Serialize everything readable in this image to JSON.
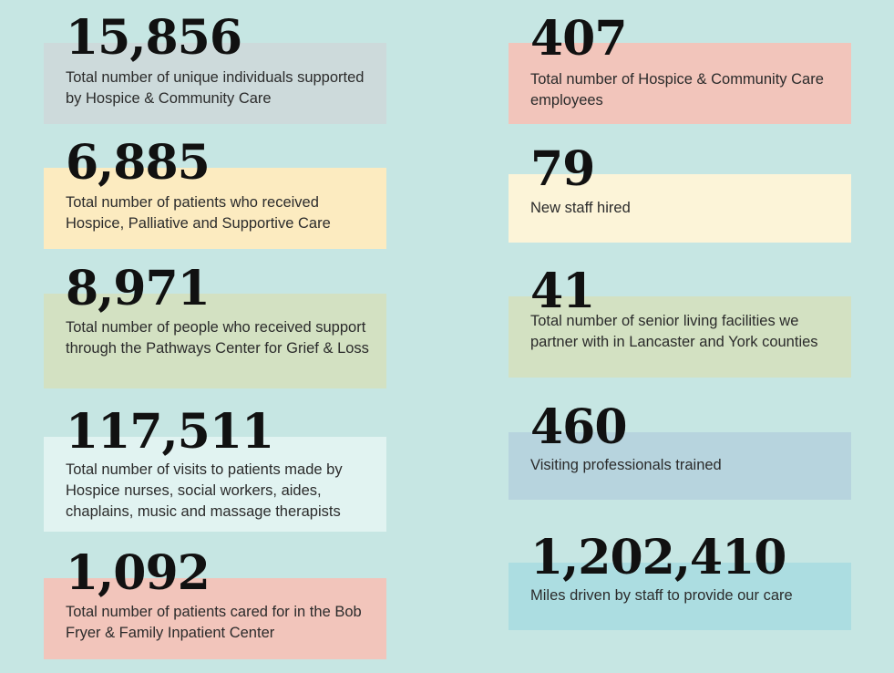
{
  "colors": {
    "background": "#c6e6e3",
    "gray": "#cddadb",
    "yellow": "#fcebc0",
    "green": "#d3e1c2",
    "pale": "#e1f3f1",
    "salmon": "#f2c5bb",
    "cream": "#fcf4d8",
    "blue": "#b7d4de",
    "cyan": "#acdde1"
  },
  "left": [
    {
      "number": "15,856",
      "text": "Total number of unique individuals supported by Hospice & Community Care"
    },
    {
      "number": "6,885",
      "text": "Total number of patients who received Hospice, Palliative and Supportive Care"
    },
    {
      "number": "8,971",
      "text": "Total number of people who received support through the Pathways Center for Grief & Loss"
    },
    {
      "number": "117,511",
      "text": "Total number of visits to patients made by Hospice nurses, social workers, aides, chaplains, music and massage therapists"
    },
    {
      "number": "1,092",
      "text": "Total number of patients cared for in the Bob Fryer & Family Inpatient Center"
    }
  ],
  "right": [
    {
      "number": "407",
      "text": "Total number of Hospice & Community Care employees"
    },
    {
      "number": "79",
      "text": "New staff hired"
    },
    {
      "number": "41",
      "text": "Total number of senior living facilities we partner with in Lancaster and York counties"
    },
    {
      "number": "460",
      "text": "Visiting professionals trained"
    },
    {
      "number": "1,202,410",
      "text": "Miles driven by staff to provide our care"
    }
  ]
}
